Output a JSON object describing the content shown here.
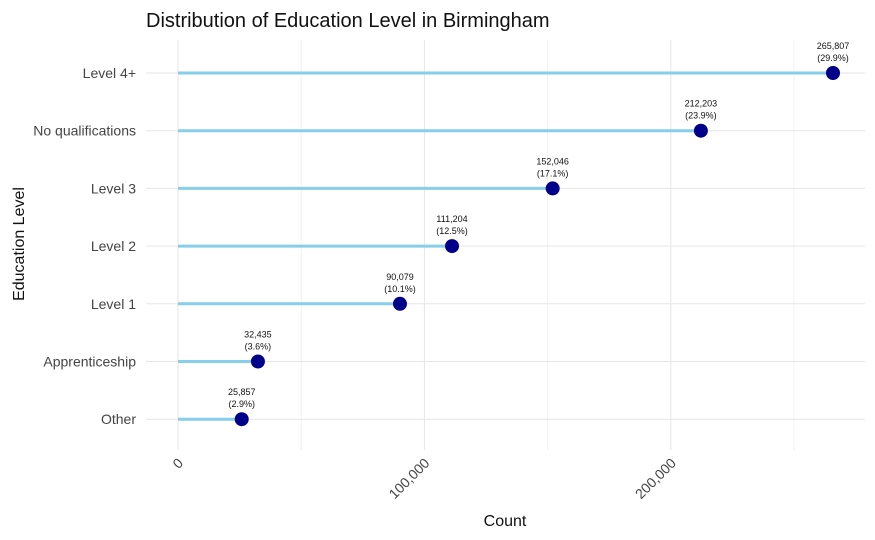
{
  "chart_data": {
    "type": "lollipop",
    "title": "Distribution of Education Level in Birmingham",
    "xlabel": "Count",
    "ylabel": "Education Level",
    "xlim": [
      0,
      265807
    ],
    "x_ticks": [
      0,
      100000,
      200000
    ],
    "x_tick_labels": [
      "0",
      "100,000",
      "200,000"
    ],
    "grid": true,
    "legend": "none",
    "categories": [
      "Level 4+",
      "No qualifications",
      "Level 3",
      "Level 2",
      "Level 1",
      "Apprenticeship",
      "Other"
    ],
    "values": [
      265807,
      212203,
      152046,
      111204,
      90079,
      32435,
      25857
    ],
    "value_labels": [
      "265,807",
      "212,203",
      "152,046",
      "111,204",
      "90,079",
      "32,435",
      "25,857"
    ],
    "percent_labels": [
      "(29.9%)",
      "(23.9%)",
      "(17.1%)",
      "(12.5%)",
      "(10.1%)",
      "(3.6%)",
      "(2.9%)"
    ],
    "colors": {
      "stem": "#87ceeb",
      "point": "#00008b"
    }
  }
}
